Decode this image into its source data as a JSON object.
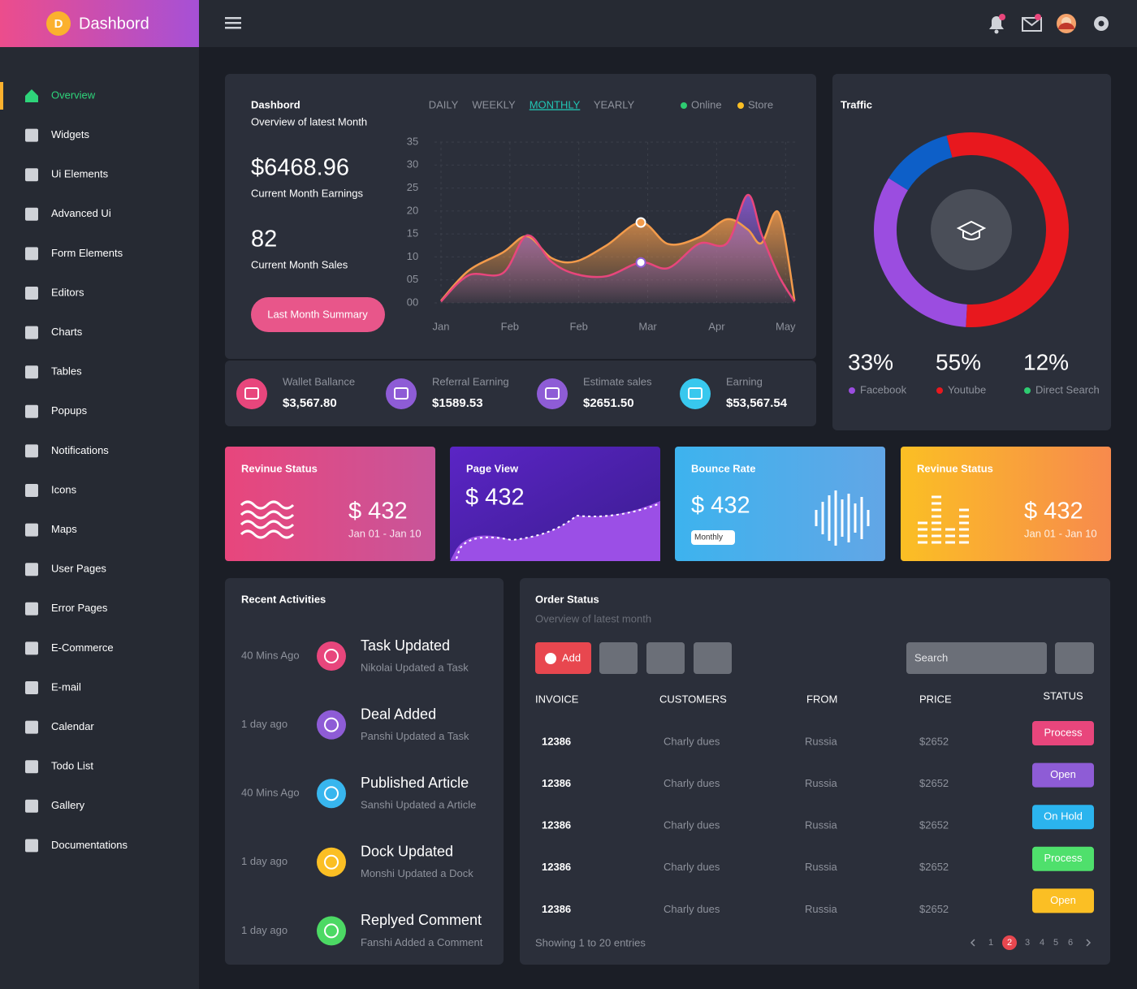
{
  "header": {
    "brand_letter": "D",
    "brand": "Dashbord"
  },
  "sidebar": {
    "active": 0,
    "items": [
      "Overview",
      "Widgets",
      "Ui Elements",
      "Advanced Ui",
      "Form Elements",
      "Editors",
      "Charts",
      "Tables",
      "Popups",
      "Notifications",
      "Icons",
      "Maps",
      "User Pages",
      "Error Pages",
      "E-Commerce",
      "E-mail",
      "Calendar",
      "Todo List",
      "Gallery",
      "Documentations"
    ]
  },
  "earnings": {
    "title": "Dashbord",
    "subtitle": "Overview of latest Month",
    "tabs": [
      "DAILY",
      "WEEKLY",
      "MONTHLY",
      "YEARLY"
    ],
    "active_tab": 2,
    "amount": "$6468.96",
    "amount_label": "Current Month Earnings",
    "sales": "82",
    "sales_label": "Current Month Sales",
    "button": "Last Month Summary"
  },
  "chart_data": [
    {
      "type": "area",
      "x": [
        0,
        0.4,
        0.9,
        1.25,
        1.6,
        1.95,
        2.4,
        2.9,
        3.3,
        3.75,
        4.15,
        4.45,
        4.65,
        4.9,
        5.13
      ],
      "series": [
        {
          "name": "Store",
          "color": "#f39b4b",
          "fill_color": "#f39b4b",
          "legend_color": "#fbbf24",
          "values": [
            0.5,
            7,
            11,
            14.5,
            9.8,
            9,
            12.5,
            17.5,
            12.8,
            14.3,
            18.2,
            16,
            13,
            19.6,
            0.5
          ]
        },
        {
          "name": "Online",
          "color": "#e8467c",
          "fill_color": "#8e5cd6",
          "legend_color": "#2ecc71",
          "values": [
            0.3,
            6,
            6.5,
            14.7,
            9,
            6.3,
            5.8,
            8.8,
            7.6,
            12.9,
            13,
            23.5,
            15,
            6,
            0.3
          ]
        }
      ],
      "legend_order": [
        1,
        0
      ],
      "marker_index": 7,
      "xlim": [
        0,
        5.15
      ],
      "xticks": [
        {
          "value": 0,
          "label": "Jan"
        },
        {
          "value": 1,
          "label": "Feb"
        },
        {
          "value": 2,
          "label": "Feb"
        },
        {
          "value": 3,
          "label": "Mar"
        },
        {
          "value": 4,
          "label": "Apr"
        },
        {
          "value": 5,
          "label": "May"
        }
      ],
      "ylim": [
        0,
        35
      ],
      "yticks": [
        {
          "value": 0,
          "label": "00"
        },
        {
          "value": 5,
          "label": "05"
        },
        10,
        15,
        20,
        25,
        30,
        35
      ],
      "grid": true
    },
    {
      "type": "pie",
      "title": "Traffic",
      "donut": true,
      "start_angle": 302,
      "direction": "counterclockwise",
      "categories": [
        "Facebook",
        "Youtube",
        "Direct Search"
      ],
      "values": [
        33,
        55,
        12
      ],
      "value_labels": [
        "33%",
        "55%",
        "12%"
      ],
      "colors": [
        "#9b4de0",
        "#e8181e",
        "#0d5fc8"
      ],
      "legend_colors": [
        "#9b4de0",
        "#e8181e",
        "#2ecc71"
      ]
    }
  ],
  "stats": [
    {
      "label": "Wallet Ballance",
      "value": "$3,567.80",
      "color": "#e8467c"
    },
    {
      "label": "Referral Earning",
      "value": "$1589.53",
      "color": "#8e5cd6"
    },
    {
      "label": "Estimate sales",
      "value": "$2651.50",
      "color": "#8e5cd6"
    },
    {
      "label": "Earning",
      "value": "$53,567.54",
      "color": "#38c8ee"
    }
  ],
  "tiles": [
    {
      "title": "Revinue Status",
      "value": "$ 432",
      "date": "Jan 01 - Jan 10"
    },
    {
      "title": "Page View",
      "value": "$ 432"
    },
    {
      "title": "Bounce Rate",
      "value": "$ 432",
      "select": "Monthly"
    },
    {
      "title": "Revinue Status",
      "value": "$ 432",
      "date": "Jan 01 - Jan 10"
    }
  ],
  "activities": {
    "title": "Recent Activities",
    "items": [
      {
        "time": "40 Mins Ago",
        "title": "Task Updated",
        "text": "Nikolai Updated a Task",
        "color": "#e8467c"
      },
      {
        "time": "1 day ago",
        "title": "Deal Added",
        "text": "Panshi Updated a Task",
        "color": "#8e5cd6"
      },
      {
        "time": "40 Mins Ago",
        "title": "Published Article",
        "text": "Sanshi Updated a Article",
        "color": "#38b6ee"
      },
      {
        "time": "1 day ago",
        "title": "Dock Updated",
        "text": "Monshi Updated a Dock",
        "color": "#fbbf24"
      },
      {
        "time": "1 day ago",
        "title": "Replyed Comment",
        "text": "Fanshi Added a Comment",
        "color": "#4cd964"
      }
    ]
  },
  "orders": {
    "title": "Order Status",
    "subtitle": "Overview of latest month",
    "add": "Add",
    "search": "Search",
    "columns": [
      "INVOICE",
      "CUSTOMERS",
      "FROM",
      "PRICE",
      "STATUS"
    ],
    "rows": [
      {
        "invoice": "12386",
        "customer": "Charly dues",
        "from": "Russia",
        "price": "$2652",
        "status": "Process",
        "status_color": "#e8467c"
      },
      {
        "invoice": "12386",
        "customer": "Charly dues",
        "from": "Russia",
        "price": "$2652",
        "status": "Open",
        "status_color": "#8e5cd6"
      },
      {
        "invoice": "12386",
        "customer": "Charly dues",
        "from": "Russia",
        "price": "$2652",
        "status": "On Hold",
        "status_color": "#2bb4ee"
      },
      {
        "invoice": "12386",
        "customer": "Charly dues",
        "from": "Russia",
        "price": "$2652",
        "status": "Process",
        "status_color": "#4fe06c"
      },
      {
        "invoice": "12386",
        "customer": "Charly dues",
        "from": "Russia",
        "price": "$2652",
        "status": "Open",
        "status_color": "#fbbf24"
      }
    ],
    "footer": "Showing 1 to 20 entries",
    "pages": [
      "1",
      "2",
      "3",
      "4",
      "5",
      "6"
    ],
    "active_page": 1
  }
}
